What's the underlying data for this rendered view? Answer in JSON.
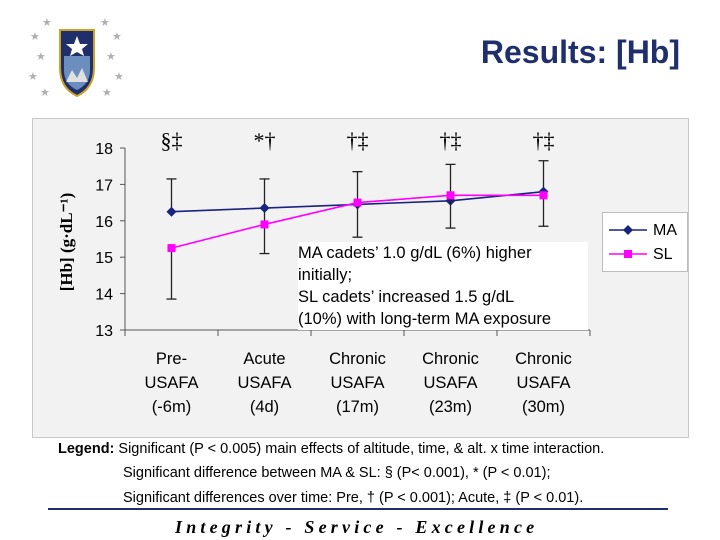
{
  "slide": {
    "title": "Results: [Hb]",
    "motto": "Integrity - Service - Excellence",
    "accent_color": "#1f2f6b",
    "logo_icon": "air-force-academy-seal"
  },
  "overlay_text": [
    "MA cadets’ 1.0 g/dL (6%) higher",
    "initially;",
    "SL cadets’ increased 1.5 g/dL",
    "(10%) with long-term MA exposure"
  ],
  "legend_text": [
    {
      "label": "Legend:",
      "text": " Significant (P < 0.005) main effects of altitude, time, & alt. x time interaction."
    },
    {
      "label": "",
      "text": "Significant difference between MA & SL: § (P< 0.001), * (P < 0.01);"
    },
    {
      "label": "",
      "text": "Significant differences over time: Pre, † (P < 0.001); Acute, ‡ (P < 0.01)."
    }
  ],
  "chart_data": {
    "type": "line",
    "title": "",
    "xlabel": "",
    "ylabel": "[Hb] (g·dL⁻¹)",
    "ylim": [
      13,
      18
    ],
    "yticks": [
      13,
      14,
      15,
      16,
      17,
      18
    ],
    "grid": false,
    "legend_position": "right",
    "categories": [
      [
        "Pre-",
        "USAFA",
        "(-6m)"
      ],
      [
        "Acute",
        "USAFA",
        "(4d)"
      ],
      [
        "Chronic",
        "USAFA",
        "(17m)"
      ],
      [
        "Chronic",
        "USAFA",
        "(23m)"
      ],
      [
        "Chronic",
        "USAFA",
        "(30m)"
      ]
    ],
    "significance_markers": [
      "§‡",
      "*†",
      "†‡",
      "†‡",
      "†‡"
    ],
    "series": [
      {
        "name": "MA",
        "color": "#1a237e",
        "marker": "diamond",
        "values": [
          16.25,
          16.35,
          16.45,
          16.55,
          16.8
        ],
        "err_upper": [
          17.15,
          17.15,
          17.35,
          17.55,
          17.65
        ],
        "err_lower": [
          null,
          15.1,
          null,
          null,
          null
        ]
      },
      {
        "name": "SL",
        "color": "#ff00ff",
        "marker": "square",
        "values": [
          15.25,
          15.9,
          16.5,
          16.7,
          16.7
        ],
        "err_upper": [
          null,
          null,
          null,
          null,
          null
        ],
        "err_lower": [
          13.85,
          null,
          15.55,
          15.8,
          15.85
        ]
      }
    ]
  }
}
